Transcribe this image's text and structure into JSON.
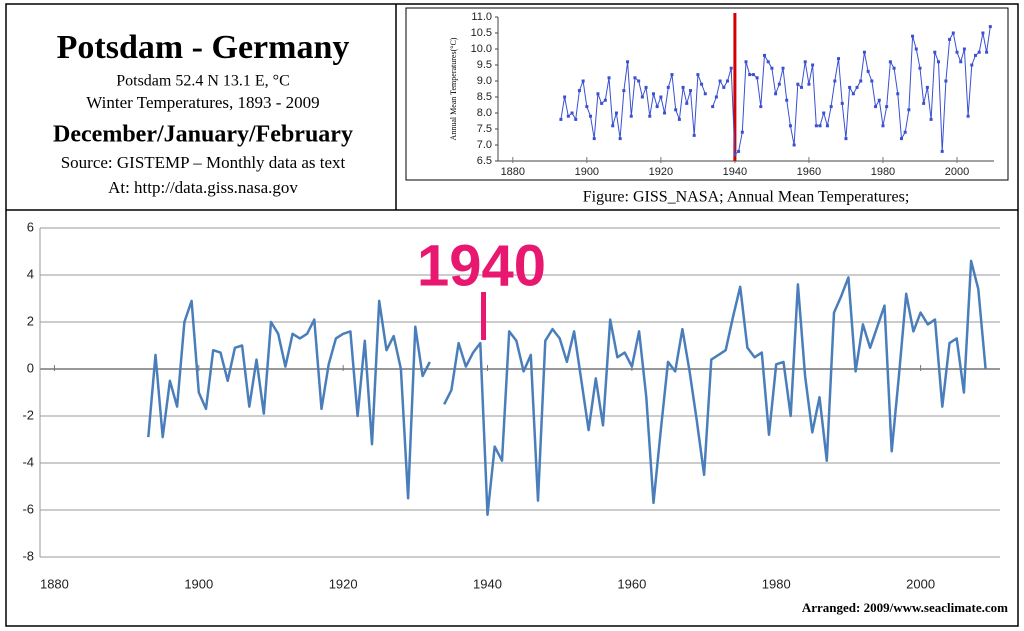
{
  "header": {
    "title": "Potsdam - Germany",
    "lines": [
      "Potsdam   52.4 N 13.1 E, °C",
      "Winter Temperatures, 1893 - 2009",
      "December/January/February",
      "Source: GISTEMP – Monthly data as text",
      "At: http://data.giss.nasa.gov"
    ]
  },
  "credit": "Arranged: 2009/www.seaclimate.com",
  "chart_data": [
    {
      "type": "line",
      "caption": "Figure: GISS_NASA; Annual Mean Temperatures;",
      "y_label": "Annual Mean Temperatures(°C)",
      "x": [
        1893,
        1894,
        1895,
        1896,
        1897,
        1898,
        1899,
        1900,
        1901,
        1902,
        1903,
        1904,
        1905,
        1906,
        1907,
        1908,
        1909,
        1910,
        1911,
        1912,
        1913,
        1914,
        1915,
        1916,
        1917,
        1918,
        1919,
        1920,
        1921,
        1922,
        1923,
        1924,
        1925,
        1926,
        1927,
        1928,
        1929,
        1930,
        1931,
        1932,
        1933,
        1934,
        1935,
        1936,
        1937,
        1938,
        1939,
        1940,
        1941,
        1942,
        1943,
        1944,
        1945,
        1946,
        1947,
        1948,
        1949,
        1950,
        1951,
        1952,
        1953,
        1954,
        1955,
        1956,
        1957,
        1958,
        1959,
        1960,
        1961,
        1962,
        1963,
        1964,
        1965,
        1966,
        1967,
        1968,
        1969,
        1970,
        1971,
        1972,
        1973,
        1974,
        1975,
        1976,
        1977,
        1978,
        1979,
        1980,
        1981,
        1982,
        1983,
        1984,
        1985,
        1986,
        1987,
        1988,
        1989,
        1990,
        1991,
        1992,
        1993,
        1994,
        1995,
        1996,
        1997,
        1998,
        1999,
        2000,
        2001,
        2002,
        2003,
        2004,
        2005,
        2006,
        2007,
        2008,
        2009
      ],
      "series": [
        {
          "color": "#3a50d0",
          "values": [
            7.8,
            8.5,
            7.9,
            8.0,
            7.8,
            8.7,
            9.0,
            8.2,
            7.9,
            7.2,
            8.6,
            8.3,
            8.4,
            9.1,
            7.6,
            8.0,
            7.2,
            8.7,
            9.6,
            7.9,
            9.1,
            9.0,
            8.5,
            8.8,
            7.9,
            8.6,
            8.2,
            8.5,
            8.0,
            8.8,
            9.2,
            8.1,
            7.8,
            8.8,
            8.3,
            8.7,
            7.3,
            9.2,
            8.9,
            8.6,
            null,
            8.2,
            8.5,
            9.0,
            8.8,
            9.0,
            9.4,
            6.7,
            6.8,
            7.4,
            9.6,
            9.2,
            9.2,
            9.1,
            8.2,
            9.8,
            9.6,
            9.4,
            8.6,
            8.9,
            9.4,
            8.4,
            7.6,
            7.0,
            8.9,
            8.8,
            9.6,
            8.9,
            9.5,
            7.6,
            7.6,
            8.0,
            7.6,
            8.2,
            9.0,
            9.7,
            8.3,
            7.2,
            8.8,
            8.6,
            8.8,
            9.0,
            9.9,
            9.3,
            9.0,
            8.2,
            8.4,
            7.6,
            8.2,
            9.6,
            9.4,
            8.6,
            7.2,
            7.4,
            8.1,
            10.4,
            10.0,
            9.4,
            8.3,
            8.8,
            7.8,
            9.9,
            9.6,
            6.8,
            9.0,
            10.3,
            10.5,
            9.9,
            9.6,
            10.0,
            7.9,
            9.5,
            9.8,
            9.9,
            10.5,
            9.9,
            10.7
          ]
        }
      ],
      "xlim": [
        1876,
        2010
      ],
      "xticks": [
        1880,
        1900,
        1920,
        1940,
        1960,
        1980,
        2000
      ],
      "ylim": [
        6.5,
        11.0
      ],
      "yticks": [
        6.5,
        {
          "value": 7,
          "label": "7.0"
        },
        7.5,
        {
          "value": 8,
          "label": "8.0"
        },
        8.5,
        {
          "value": 9,
          "label": "9.0"
        },
        9.5,
        {
          "value": 10,
          "label": "10.0"
        },
        10.5,
        {
          "value": 11,
          "label": "11.0"
        }
      ],
      "highlight_x": 1940,
      "highlight_color": "#d40000",
      "markers": true
    },
    {
      "type": "line",
      "x": [
        1893,
        1894,
        1895,
        1896,
        1897,
        1898,
        1899,
        1900,
        1901,
        1902,
        1903,
        1904,
        1905,
        1906,
        1907,
        1908,
        1909,
        1910,
        1911,
        1912,
        1913,
        1914,
        1915,
        1916,
        1917,
        1918,
        1919,
        1920,
        1921,
        1922,
        1923,
        1924,
        1925,
        1926,
        1927,
        1928,
        1929,
        1930,
        1931,
        1932,
        1933,
        1934,
        1935,
        1936,
        1937,
        1938,
        1939,
        1940,
        1941,
        1942,
        1943,
        1944,
        1945,
        1946,
        1947,
        1948,
        1949,
        1950,
        1951,
        1952,
        1953,
        1954,
        1955,
        1956,
        1957,
        1958,
        1959,
        1960,
        1961,
        1962,
        1963,
        1964,
        1965,
        1966,
        1967,
        1968,
        1969,
        1970,
        1971,
        1972,
        1973,
        1974,
        1975,
        1976,
        1977,
        1978,
        1979,
        1980,
        1981,
        1982,
        1983,
        1984,
        1985,
        1986,
        1987,
        1988,
        1989,
        1990,
        1991,
        1992,
        1993,
        1994,
        1995,
        1996,
        1997,
        1998,
        1999,
        2000,
        2001,
        2002,
        2003,
        2004,
        2005,
        2006,
        2007,
        2008,
        2009
      ],
      "series": [
        {
          "color": "#4a7ebb",
          "values": [
            -2.9,
            0.6,
            -2.9,
            -0.5,
            -1.6,
            2.0,
            2.9,
            -1.0,
            -1.7,
            0.8,
            0.7,
            -0.5,
            0.9,
            1.0,
            -1.6,
            0.4,
            -1.9,
            2.0,
            1.5,
            0.1,
            1.5,
            1.3,
            1.5,
            2.1,
            -1.7,
            0.2,
            1.3,
            1.5,
            1.6,
            -2.0,
            1.2,
            -3.2,
            2.9,
            0.8,
            1.4,
            0.0,
            -5.5,
            1.8,
            -0.3,
            0.3,
            null,
            -1.5,
            -0.9,
            1.1,
            0.1,
            0.7,
            1.1,
            -6.2,
            -3.3,
            -3.9,
            1.6,
            1.2,
            -0.1,
            0.6,
            -5.6,
            1.2,
            1.7,
            1.3,
            0.3,
            1.6,
            -0.5,
            -2.6,
            -0.4,
            -2.4,
            2.1,
            0.5,
            0.7,
            0.1,
            1.6,
            -1.2,
            -5.7,
            -2.6,
            0.3,
            -0.1,
            1.7,
            -0.1,
            -2.2,
            -4.5,
            0.4,
            0.6,
            0.8,
            2.2,
            3.5,
            0.9,
            0.5,
            0.7,
            -2.8,
            0.2,
            0.3,
            -2.0,
            3.6,
            -0.3,
            -2.7,
            -1.2,
            -3.9,
            2.4,
            3.1,
            3.9,
            -0.1,
            1.9,
            0.9,
            1.8,
            2.7,
            -3.5,
            -0.3,
            3.2,
            1.6,
            2.4,
            1.9,
            2.1,
            -1.6,
            1.1,
            1.3,
            -1.0,
            4.6,
            3.4,
            0.0
          ]
        }
      ],
      "xlim": [
        1878,
        2011
      ],
      "xticks": [
        1880,
        1900,
        1920,
        1940,
        1960,
        1980,
        2000
      ],
      "ylim": [
        -8,
        6
      ],
      "yticks": [
        -8,
        -6,
        -4,
        -2,
        0,
        2,
        4,
        6
      ],
      "grid": true,
      "annotations": [
        {
          "text": "1940",
          "x": 1940,
          "color": "#e8176f"
        }
      ]
    }
  ]
}
